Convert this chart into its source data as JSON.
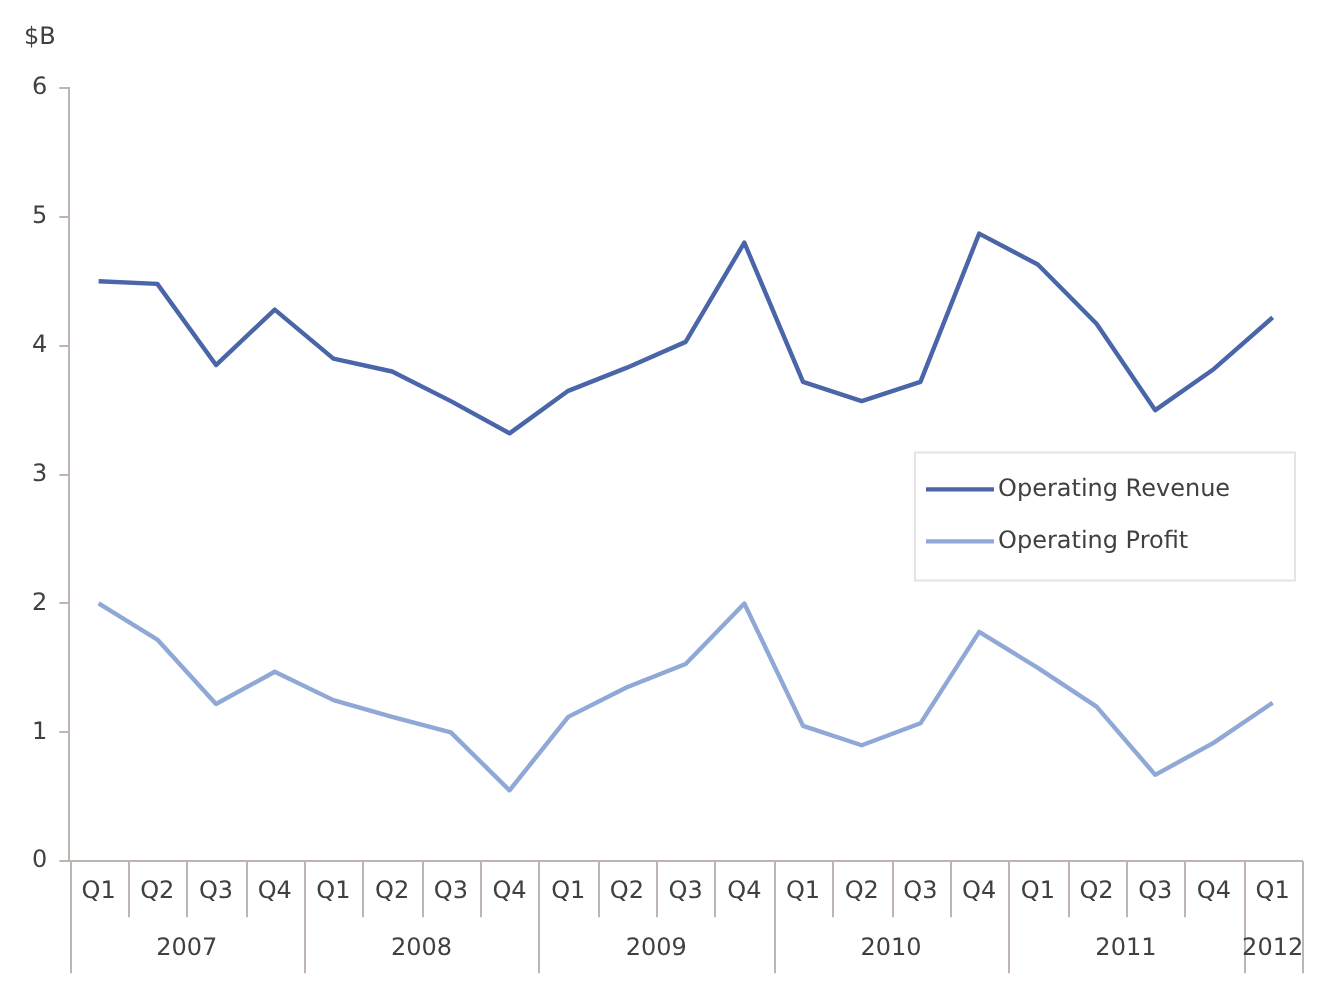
{
  "chart_data": {
    "type": "line",
    "ylabel": "$B",
    "categories": [
      "Q1",
      "Q2",
      "Q3",
      "Q4",
      "Q1",
      "Q2",
      "Q3",
      "Q4",
      "Q1",
      "Q2",
      "Q3",
      "Q4",
      "Q1",
      "Q2",
      "Q3",
      "Q4",
      "Q1",
      "Q2",
      "Q3",
      "Q4",
      "Q1"
    ],
    "annotations": [
      "2007",
      "2008",
      "2009",
      "2010",
      "2011",
      "2012"
    ],
    "series": [
      {
        "name": "Operating Revenue",
        "color": "#4a66a8",
        "values": [
          4.5,
          4.48,
          3.85,
          4.28,
          3.9,
          3.8,
          3.57,
          3.32,
          3.65,
          3.83,
          4.03,
          4.8,
          3.72,
          3.57,
          3.72,
          4.87,
          4.63,
          4.17,
          3.5,
          3.82,
          4.22
        ]
      },
      {
        "name": "Operating Profit",
        "color": "#8fa8d6",
        "values": [
          2.0,
          1.72,
          1.22,
          1.47,
          1.25,
          1.12,
          1.0,
          0.55,
          1.12,
          1.35,
          1.53,
          2.0,
          1.05,
          0.9,
          1.07,
          1.78,
          1.5,
          1.2,
          0.67,
          0.92,
          1.23
        ]
      }
    ],
    "ylim": [
      0,
      6
    ],
    "yticks": [
      0,
      1,
      2,
      3,
      4,
      5,
      6
    ],
    "grid": false,
    "legend": "right",
    "marker": "none",
    "line_style": "solid"
  }
}
